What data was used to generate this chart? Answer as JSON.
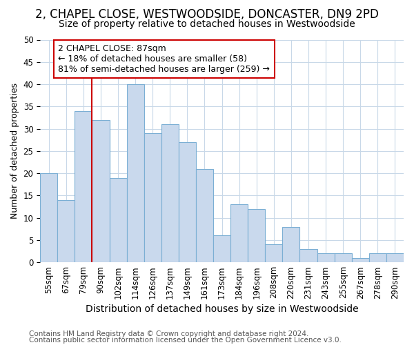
{
  "title": "2, CHAPEL CLOSE, WESTWOODSIDE, DONCASTER, DN9 2PD",
  "subtitle": "Size of property relative to detached houses in Westwoodside",
  "xlabel": "Distribution of detached houses by size in Westwoodside",
  "ylabel": "Number of detached properties",
  "categories": [
    "55sqm",
    "67sqm",
    "79sqm",
    "90sqm",
    "102sqm",
    "114sqm",
    "126sqm",
    "137sqm",
    "149sqm",
    "161sqm",
    "173sqm",
    "184sqm",
    "196sqm",
    "208sqm",
    "220sqm",
    "231sqm",
    "243sqm",
    "255sqm",
    "267sqm",
    "278sqm",
    "290sqm"
  ],
  "values": [
    20,
    14,
    34,
    32,
    19,
    40,
    29,
    31,
    27,
    21,
    6,
    13,
    12,
    4,
    8,
    3,
    2,
    2,
    1,
    2,
    2
  ],
  "bar_color": "#c9d9ed",
  "bar_edge_color": "#7bafd4",
  "annotation_line1": "2 CHAPEL CLOSE: 87sqm",
  "annotation_line2": "← 18% of detached houses are smaller (58)",
  "annotation_line3": "81% of semi-detached houses are larger (259) →",
  "vline_color": "#cc0000",
  "annotation_box_edge": "#cc0000",
  "vline_x": 2.5,
  "ylim": [
    0,
    50
  ],
  "yticks": [
    0,
    5,
    10,
    15,
    20,
    25,
    30,
    35,
    40,
    45,
    50
  ],
  "footer1": "Contains HM Land Registry data © Crown copyright and database right 2024.",
  "footer2": "Contains public sector information licensed under the Open Government Licence v3.0.",
  "title_fontsize": 12,
  "subtitle_fontsize": 10,
  "xlabel_fontsize": 10,
  "ylabel_fontsize": 9,
  "tick_fontsize": 8.5,
  "annotation_fontsize": 9,
  "footer_fontsize": 7.5,
  "background_color": "#ffffff",
  "plot_bg_color": "#ffffff",
  "grid_color": "#c8d8e8"
}
